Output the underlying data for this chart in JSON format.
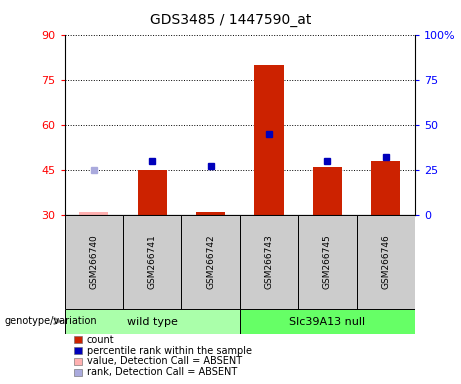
{
  "title": "GDS3485 / 1447590_at",
  "samples": [
    "GSM266740",
    "GSM266741",
    "GSM266742",
    "GSM266743",
    "GSM266745",
    "GSM266746"
  ],
  "count_values": [
    31,
    45,
    31,
    80,
    46,
    48
  ],
  "percentile_values": [
    null,
    30,
    27,
    45,
    30,
    32
  ],
  "absent_indices": [
    0
  ],
  "absent_count_value": 31,
  "absent_rank_value": 25,
  "ylim_left": [
    30,
    90
  ],
  "ylim_right": [
    0,
    100
  ],
  "yticks_left": [
    30,
    45,
    60,
    75,
    90
  ],
  "yticks_right": [
    0,
    25,
    50,
    75,
    100
  ],
  "ytick_labels_right": [
    "0",
    "25",
    "50",
    "75",
    "100%"
  ],
  "groups": [
    {
      "label": "wild type",
      "color": "#aaffaa",
      "span": [
        0,
        3
      ]
    },
    {
      "label": "Slc39A13 null",
      "color": "#66ff66",
      "span": [
        3,
        6
      ]
    }
  ],
  "bar_color": "#cc2200",
  "bar_width": 0.5,
  "blue_marker_color": "#0000bb",
  "pink_bar_color": "#ffb0b0",
  "light_blue_marker_color": "#aaaadd",
  "legend_items": [
    {
      "color": "#cc2200",
      "label": "count"
    },
    {
      "color": "#0000bb",
      "label": "percentile rank within the sample"
    },
    {
      "color": "#ffb0b0",
      "label": "value, Detection Call = ABSENT"
    },
    {
      "color": "#aaaadd",
      "label": "rank, Detection Call = ABSENT"
    }
  ]
}
